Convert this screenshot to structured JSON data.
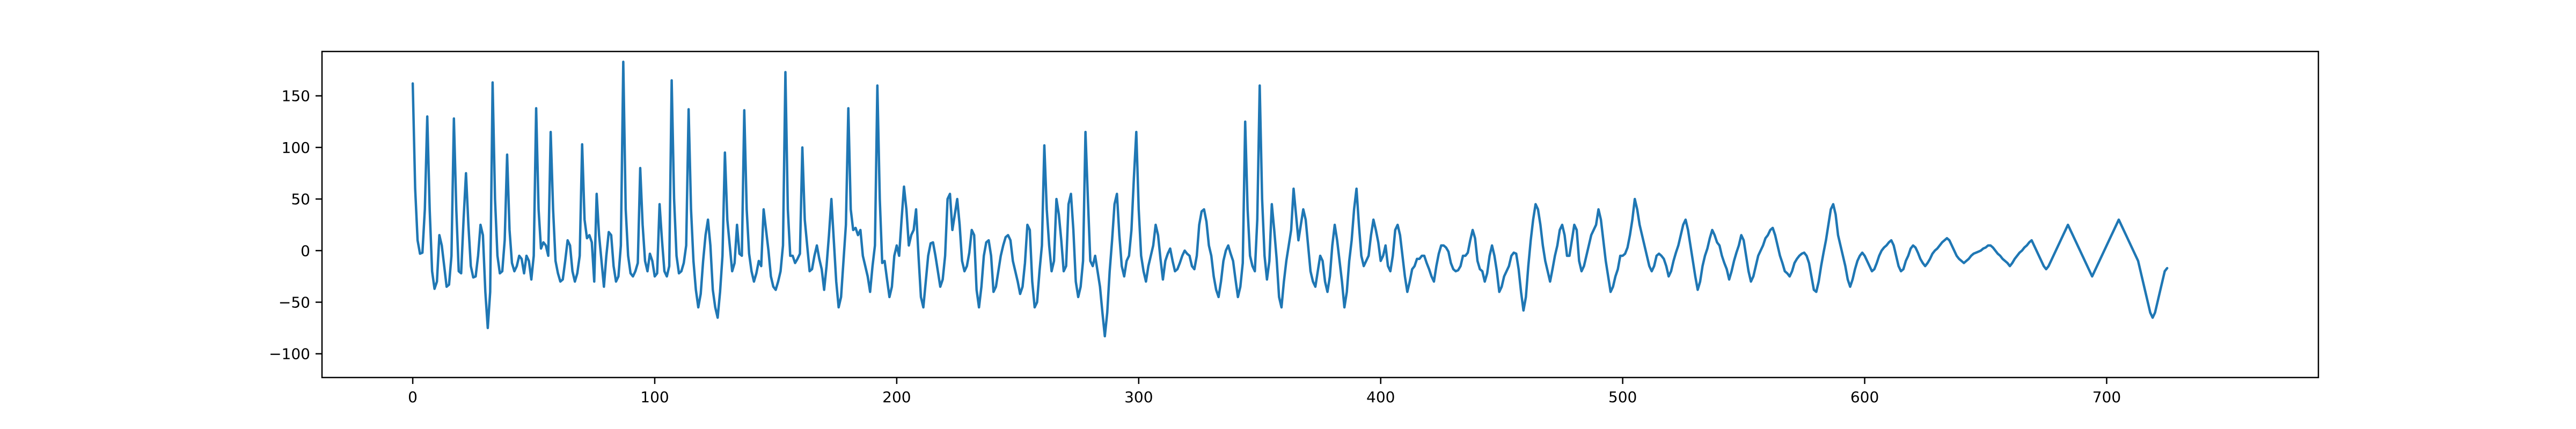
{
  "chart_data": {
    "type": "line",
    "title": "",
    "xlabel": "",
    "ylabel": "",
    "xlim": [
      -37.5,
      787.5
    ],
    "ylim": [
      -123,
      193
    ],
    "xticks": [
      0,
      100,
      200,
      300,
      400,
      500,
      600,
      700
    ],
    "yticks": [
      -100,
      -50,
      0,
      50,
      100,
      150
    ],
    "grid": false,
    "legend": "none",
    "series": [
      {
        "color": "#1f77b4",
        "x_start": 0,
        "x_step": 1,
        "values": [
          162,
          60,
          10,
          -3,
          -2,
          40,
          130,
          40,
          -20,
          -37,
          -30,
          15,
          5,
          -15,
          -35,
          -33,
          -5,
          128,
          40,
          -20,
          -22,
          30,
          75,
          25,
          -15,
          -26,
          -25,
          -5,
          25,
          15,
          -40,
          -75,
          -40,
          163,
          50,
          -5,
          -22,
          -20,
          10,
          93,
          20,
          -12,
          -20,
          -15,
          -5,
          -8,
          -22,
          -5,
          -10,
          -28,
          -5,
          138,
          40,
          2,
          8,
          5,
          -5,
          115,
          40,
          -10,
          -22,
          -30,
          -28,
          -10,
          10,
          5,
          -20,
          -30,
          -22,
          -5,
          103,
          30,
          12,
          15,
          8,
          -30,
          55,
          15,
          -10,
          -35,
          -5,
          18,
          15,
          -15,
          -30,
          -25,
          5,
          183,
          40,
          -5,
          -22,
          -25,
          -20,
          -12,
          80,
          25,
          -10,
          -20,
          -3,
          -10,
          -25,
          -22,
          45,
          10,
          -20,
          -25,
          -15,
          165,
          50,
          -5,
          -22,
          -20,
          -12,
          5,
          137,
          40,
          -10,
          -38,
          -55,
          -42,
          -10,
          15,
          30,
          5,
          -38,
          -55,
          -65,
          -40,
          -5,
          95,
          30,
          5,
          -20,
          -12,
          25,
          -3,
          -5,
          136,
          40,
          -3,
          -20,
          -30,
          -22,
          -10,
          -15,
          40,
          20,
          0,
          -25,
          -35,
          -38,
          -30,
          -20,
          5,
          173,
          40,
          -5,
          -5,
          -12,
          -8,
          -3,
          100,
          30,
          5,
          -20,
          -18,
          -5,
          5,
          -8,
          -18,
          -38,
          -15,
          15,
          50,
          10,
          -30,
          -55,
          -45,
          -10,
          25,
          138,
          40,
          20,
          22,
          15,
          20,
          -5,
          -15,
          -25,
          -40,
          -15,
          5,
          160,
          50,
          -12,
          -10,
          -28,
          -45,
          -35,
          -5,
          5,
          -5,
          30,
          62,
          40,
          5,
          15,
          20,
          40,
          -5,
          -45,
          -55,
          -30,
          -5,
          7,
          8,
          -5,
          -20,
          -35,
          -28,
          -5,
          50,
          55,
          20,
          35,
          50,
          25,
          -10,
          -20,
          -15,
          -2,
          20,
          15,
          -38,
          -55,
          -35,
          -5,
          8,
          10,
          -5,
          -40,
          -35,
          -20,
          -5,
          5,
          13,
          15,
          10,
          -10,
          -20,
          -30,
          -42,
          -35,
          -12,
          25,
          20,
          -30,
          -55,
          -50,
          -20,
          5,
          102,
          40,
          5,
          -20,
          -10,
          50,
          35,
          10,
          -20,
          -15,
          45,
          55,
          20,
          -30,
          -45,
          -35,
          -10,
          115,
          50,
          -10,
          -15,
          -5,
          -20,
          -35,
          -60,
          -83,
          -60,
          -20,
          10,
          45,
          55,
          15,
          -15,
          -25,
          -10,
          -5,
          20,
          70,
          115,
          40,
          -5,
          -20,
          -30,
          -15,
          -5,
          5,
          25,
          15,
          -8,
          -28,
          -10,
          -3,
          2,
          -10,
          -20,
          -18,
          -12,
          -5,
          0,
          -3,
          -5,
          -15,
          -18,
          -5,
          25,
          38,
          40,
          28,
          5,
          -5,
          -25,
          -38,
          -45,
          -30,
          -10,
          0,
          5,
          -3,
          -10,
          -28,
          -45,
          -35,
          -12,
          125,
          40,
          -5,
          -15,
          -20,
          30,
          160,
          50,
          -5,
          -28,
          -10,
          45,
          20,
          -8,
          -45,
          -55,
          -30,
          -10,
          5,
          20,
          60,
          35,
          10,
          25,
          40,
          30,
          5,
          -20,
          -30,
          -35,
          -20,
          -5,
          -10,
          -30,
          -40,
          -25,
          5,
          25,
          10,
          -10,
          -30,
          -55,
          -40,
          -10,
          10,
          40,
          60,
          25,
          -5,
          -15,
          -10,
          -5,
          15,
          30,
          20,
          8,
          -10,
          -5,
          5,
          -15,
          -20,
          -5,
          20,
          25,
          15,
          -5,
          -25,
          -40,
          -30,
          -18,
          -15,
          -8,
          -8,
          -5,
          -5,
          -12,
          -18,
          -25,
          -30,
          -15,
          -3,
          5,
          5,
          3,
          -1,
          -12,
          -18,
          -20,
          -19,
          -15,
          -5,
          -5,
          -2,
          10,
          20,
          12,
          -10,
          -18,
          -20,
          -30,
          -22,
          -5,
          5,
          -5,
          -20,
          -40,
          -35,
          -25,
          -20,
          -15,
          -5,
          -2,
          -3,
          -18,
          -40,
          -58,
          -45,
          -15,
          10,
          30,
          45,
          40,
          25,
          5,
          -10,
          -20,
          -30,
          -18,
          -5,
          5,
          20,
          25,
          15,
          -5,
          -5,
          10,
          25,
          20,
          -10,
          -20,
          -15,
          -5,
          5,
          15,
          20,
          25,
          40,
          30,
          10,
          -10,
          -25,
          -40,
          -35,
          -25,
          -18,
          -5,
          -5,
          -3,
          3,
          15,
          30,
          50,
          40,
          25,
          15,
          5,
          -5,
          -15,
          -20,
          -15,
          -5,
          -3,
          -5,
          -8,
          -15,
          -25,
          -20,
          -10,
          -2,
          5,
          15,
          25,
          30,
          20,
          5,
          -10,
          -25,
          -38,
          -30,
          -15,
          -5,
          2,
          12,
          20,
          15,
          8,
          5,
          -5,
          -12,
          -18,
          -28,
          -20,
          -10,
          -2,
          5,
          15,
          10,
          -5,
          -20,
          -30,
          -25,
          -15,
          -5,
          0,
          5,
          12,
          15,
          20,
          22,
          15,
          5,
          -5,
          -12,
          -20,
          -22,
          -25,
          -20,
          -12,
          -8,
          -5,
          -3,
          -2,
          -5,
          -12,
          -25,
          -38,
          -40,
          -30,
          -15,
          -2,
          10,
          25,
          40,
          45,
          35,
          15,
          5,
          -5,
          -15,
          -28,
          -35,
          -28,
          -18,
          -10,
          -5,
          -2,
          -5,
          -10,
          -15,
          -20,
          -18,
          -12,
          -5,
          0,
          3,
          5,
          8,
          10,
          5,
          -5,
          -15,
          -20,
          -18,
          -10,
          -5,
          2,
          5,
          3,
          -2,
          -8,
          -12,
          -15,
          -12,
          -8,
          -3,
          0,
          2,
          5,
          8,
          10,
          12,
          10,
          5,
          0,
          -5,
          -8,
          -10,
          -12,
          -10,
          -8,
          -5,
          -3,
          -2,
          -1,
          0,
          2,
          3,
          5,
          5,
          3,
          0,
          -3,
          -5,
          -8,
          -10,
          -12,
          -15,
          -12,
          -8,
          -5,
          -2,
          0,
          3,
          5,
          8,
          10,
          5,
          0,
          -5,
          -10,
          -15,
          -18,
          -15,
          -10,
          -5,
          0,
          5,
          10,
          15,
          20,
          25,
          20,
          15,
          10,
          5,
          0,
          -5,
          -10,
          -15,
          -20,
          -25,
          -20,
          -15,
          -10,
          -5,
          0,
          5,
          10,
          15,
          20,
          25,
          30,
          25,
          20,
          15,
          10,
          5,
          0,
          -5,
          -10,
          -20,
          -30,
          -40,
          -50,
          -60,
          -65,
          -60,
          -50,
          -40,
          -30,
          -20,
          -17
        ]
      }
    ]
  }
}
